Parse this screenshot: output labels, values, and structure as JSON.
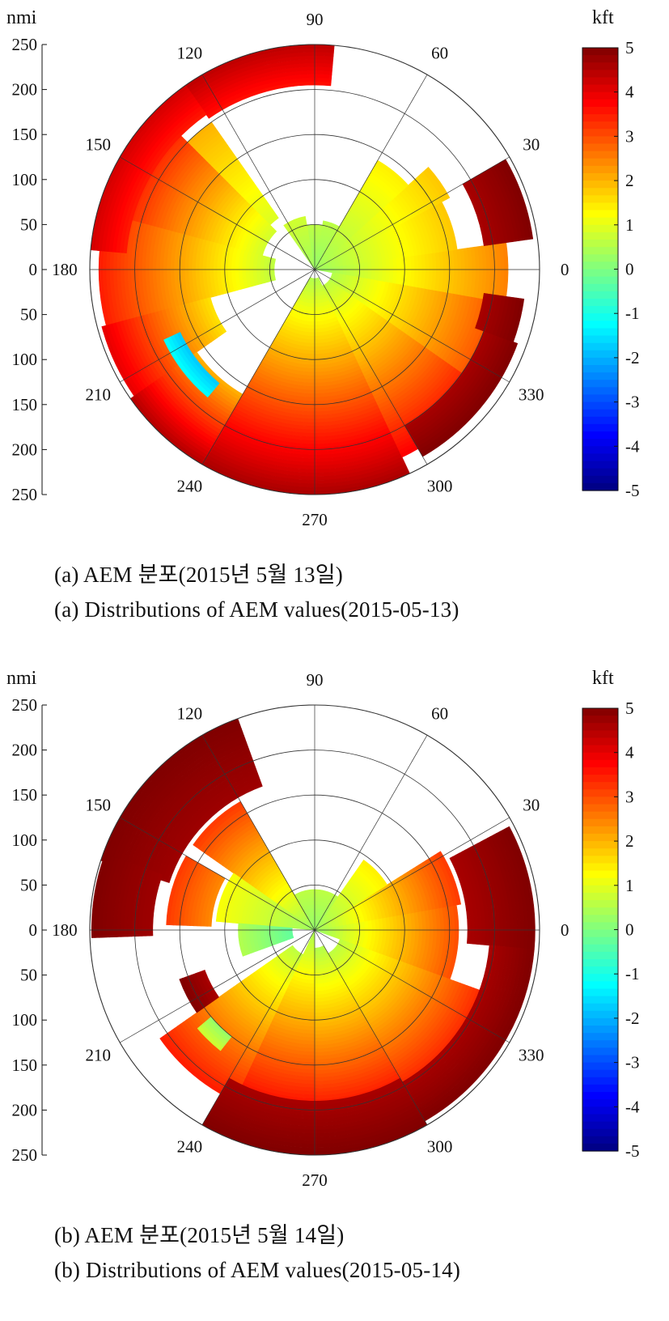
{
  "chart_data": [
    {
      "type": "heatmap",
      "subtype": "polar-sector-map",
      "panel_label": "(a)",
      "caption_ko": "(a)  AEM 분포(2015년 5월 13일)",
      "caption_en": "(a)  Distributions of AEM values(2015-05-13)",
      "radial_unit": "nmi",
      "radial_ticks": [
        "250",
        "200",
        "150",
        "100",
        "50",
        "0",
        "50",
        "100",
        "150",
        "200",
        "250"
      ],
      "rmax": 250,
      "rings": [
        50,
        100,
        150,
        200,
        250
      ],
      "angle_ticks": [
        {
          "deg": 0,
          "label": "0"
        },
        {
          "deg": 30,
          "label": "30"
        },
        {
          "deg": 60,
          "label": "60"
        },
        {
          "deg": 90,
          "label": "90"
        },
        {
          "deg": 120,
          "label": "120"
        },
        {
          "deg": 150,
          "label": "150"
        },
        {
          "deg": 180,
          "label": "180"
        },
        {
          "deg": 210,
          "label": "210"
        },
        {
          "deg": 240,
          "label": "240"
        },
        {
          "deg": 270,
          "label": "270"
        },
        {
          "deg": 300,
          "label": "300"
        },
        {
          "deg": 330,
          "label": "330"
        }
      ],
      "colorbar": {
        "unit": "kft",
        "min": -5,
        "max": 5,
        "ticks": [
          "5",
          "4",
          "3",
          "2",
          "1",
          "0",
          "-1",
          "-2",
          "-3",
          "-4",
          "-5"
        ],
        "colormap": "jet"
      },
      "sectors": [
        {
          "a0": -10,
          "a1": 8,
          "r0": 0,
          "r1": 215,
          "v0": 0.2,
          "v1": 2.5
        },
        {
          "a0": 8,
          "a1": 28,
          "r0": 0,
          "r1": 160,
          "v0": 0.3,
          "v1": 1.8
        },
        {
          "a0": 28,
          "a1": 42,
          "r0": 0,
          "r1": 170,
          "v0": 0.3,
          "v1": 1.8
        },
        {
          "a0": 42,
          "a1": 60,
          "r0": 0,
          "r1": 140,
          "v0": 0.3,
          "v1": 1.4
        },
        {
          "a0": 60,
          "a1": 80,
          "r0": 0,
          "r1": 55,
          "v0": 0.2,
          "v1": 0.6
        },
        {
          "a0": 80,
          "a1": 100,
          "r0": 0,
          "r1": 50,
          "v0": 0.2,
          "v1": 0.6
        },
        {
          "a0": 100,
          "a1": 125,
          "r0": 0,
          "r1": 60,
          "v0": 0.3,
          "v1": 0.8
        },
        {
          "a0": 125,
          "a1": 135,
          "r0": 70,
          "r1": 200,
          "v0": 0.9,
          "v1": 2.0
        },
        {
          "a0": 135,
          "a1": 165,
          "r0": 60,
          "r1": 240,
          "v0": 0.8,
          "v1": 3.8
        },
        {
          "a0": 165,
          "a1": 195,
          "r0": 45,
          "r1": 240,
          "v0": 0.6,
          "v1": 3.5
        },
        {
          "a0": 195,
          "a1": 215,
          "r0": 120,
          "r1": 245,
          "v0": 1.5,
          "v1": 4.0
        },
        {
          "a0": 215,
          "a1": 240,
          "r0": 160,
          "r1": 250,
          "v0": 2.0,
          "v1": 4.5
        },
        {
          "a0": 240,
          "a1": 270,
          "r0": 10,
          "r1": 250,
          "v0": 0.5,
          "v1": 4.6
        },
        {
          "a0": 270,
          "a1": 295,
          "r0": 10,
          "r1": 250,
          "v0": 0.5,
          "v1": 4.6
        },
        {
          "a0": 295,
          "a1": 325,
          "r0": 20,
          "r1": 230,
          "v0": 0.6,
          "v1": 3.8
        },
        {
          "a0": 325,
          "a1": 350,
          "r0": 20,
          "r1": 225,
          "v0": 0.5,
          "v1": 3.2
        },
        {
          "a0": 85,
          "a1": 125,
          "r0": 205,
          "r1": 250,
          "v0": 3.6,
          "v1": 4.4
        },
        {
          "a0": 125,
          "a1": 175,
          "r0": 210,
          "r1": 250,
          "v0": 3.5,
          "v1": 4.2
        },
        {
          "a0": 8,
          "a1": 30,
          "r0": 190,
          "r1": 245,
          "v0": 4.6,
          "v1": 5.0
        },
        {
          "a0": 300,
          "a1": 340,
          "r0": 200,
          "r1": 240,
          "v0": 4.6,
          "v1": 5.0
        },
        {
          "a0": 340,
          "a1": 352,
          "r0": 190,
          "r1": 235,
          "v0": 4.6,
          "v1": 5.0
        },
        {
          "a0": 205,
          "a1": 230,
          "r0": 165,
          "r1": 185,
          "v0": -1.8,
          "v1": -1.2
        }
      ]
    },
    {
      "type": "heatmap",
      "subtype": "polar-sector-map",
      "panel_label": "(b)",
      "caption_ko": "(b)  AEM 분포(2015년 5월 14일)",
      "caption_en": "(b)  Distributions of AEM values(2015-05-14)",
      "radial_unit": "nmi",
      "radial_ticks": [
        "250",
        "200",
        "150",
        "100",
        "50",
        "0",
        "50",
        "100",
        "150",
        "200",
        "250"
      ],
      "rmax": 250,
      "rings": [
        50,
        100,
        150,
        200,
        250
      ],
      "angle_ticks": [
        {
          "deg": 0,
          "label": "0"
        },
        {
          "deg": 30,
          "label": "30"
        },
        {
          "deg": 60,
          "label": "60"
        },
        {
          "deg": 90,
          "label": "90"
        },
        {
          "deg": 120,
          "label": "120"
        },
        {
          "deg": 150,
          "label": "150"
        },
        {
          "deg": 180,
          "label": "180"
        },
        {
          "deg": 210,
          "label": "210"
        },
        {
          "deg": 240,
          "label": "240"
        },
        {
          "deg": 270,
          "label": "270"
        },
        {
          "deg": 300,
          "label": "300"
        },
        {
          "deg": 330,
          "label": "330"
        }
      ],
      "colorbar": {
        "unit": "kft",
        "min": -5,
        "max": 5,
        "ticks": [
          "5",
          "4",
          "3",
          "2",
          "1",
          "0",
          "-1",
          "-2",
          "-3",
          "-4",
          "-5"
        ],
        "colormap": "jet"
      },
      "sectors": [
        {
          "a0": -20,
          "a1": 10,
          "r0": 0,
          "r1": 160,
          "v0": 0.2,
          "v1": 3.0
        },
        {
          "a0": 10,
          "a1": 32,
          "r0": 0,
          "r1": 165,
          "v0": 0.3,
          "v1": 3.2
        },
        {
          "a0": 32,
          "a1": 55,
          "r0": 0,
          "r1": 95,
          "v0": 0.3,
          "v1": 1.4
        },
        {
          "a0": 55,
          "a1": 120,
          "r0": 0,
          "r1": 45,
          "v0": 0.2,
          "v1": 0.6
        },
        {
          "a0": 120,
          "a1": 145,
          "r0": 0,
          "r1": 165,
          "v0": 0.2,
          "v1": 3.2
        },
        {
          "a0": 145,
          "a1": 175,
          "r0": 0,
          "r1": 110,
          "v0": 0.3,
          "v1": 1.2
        },
        {
          "a0": 175,
          "a1": 200,
          "r0": 25,
          "r1": 85,
          "v0": -0.3,
          "v1": 0.5
        },
        {
          "a0": 215,
          "a1": 245,
          "r0": 30,
          "r1": 210,
          "v0": 0.6,
          "v1": 3.5
        },
        {
          "a0": 245,
          "a1": 270,
          "r0": 0,
          "r1": 195,
          "v0": 0.4,
          "v1": 3.6
        },
        {
          "a0": 270,
          "a1": 300,
          "r0": 20,
          "r1": 200,
          "v0": 0.5,
          "v1": 3.6
        },
        {
          "a0": 300,
          "a1": 340,
          "r0": 30,
          "r1": 200,
          "v0": 0.6,
          "v1": 3.4
        },
        {
          "a0": 110,
          "a1": 162,
          "r0": 170,
          "r1": 250,
          "v0": 4.7,
          "v1": 5.0
        },
        {
          "a0": 160,
          "a1": 182,
          "r0": 180,
          "r1": 248,
          "v0": 4.7,
          "v1": 5.0
        },
        {
          "a0": 150,
          "a1": 178,
          "r0": 115,
          "r1": 165,
          "v0": 2.4,
          "v1": 3.2
        },
        {
          "a0": -5,
          "a1": 28,
          "r0": 170,
          "r1": 245,
          "v0": 4.6,
          "v1": 5.0
        },
        {
          "a0": 300,
          "a1": 355,
          "r0": 195,
          "r1": 245,
          "v0": 4.6,
          "v1": 5.0
        },
        {
          "a0": 240,
          "a1": 300,
          "r0": 190,
          "r1": 250,
          "v0": 4.6,
          "v1": 5.0
        },
        {
          "a0": 200,
          "a1": 215,
          "r0": 130,
          "r1": 160,
          "v0": 4.6,
          "v1": 5.0
        },
        {
          "a0": 220,
          "a1": 232,
          "r0": 150,
          "r1": 170,
          "v0": 0.2,
          "v1": 0.8
        }
      ]
    }
  ]
}
